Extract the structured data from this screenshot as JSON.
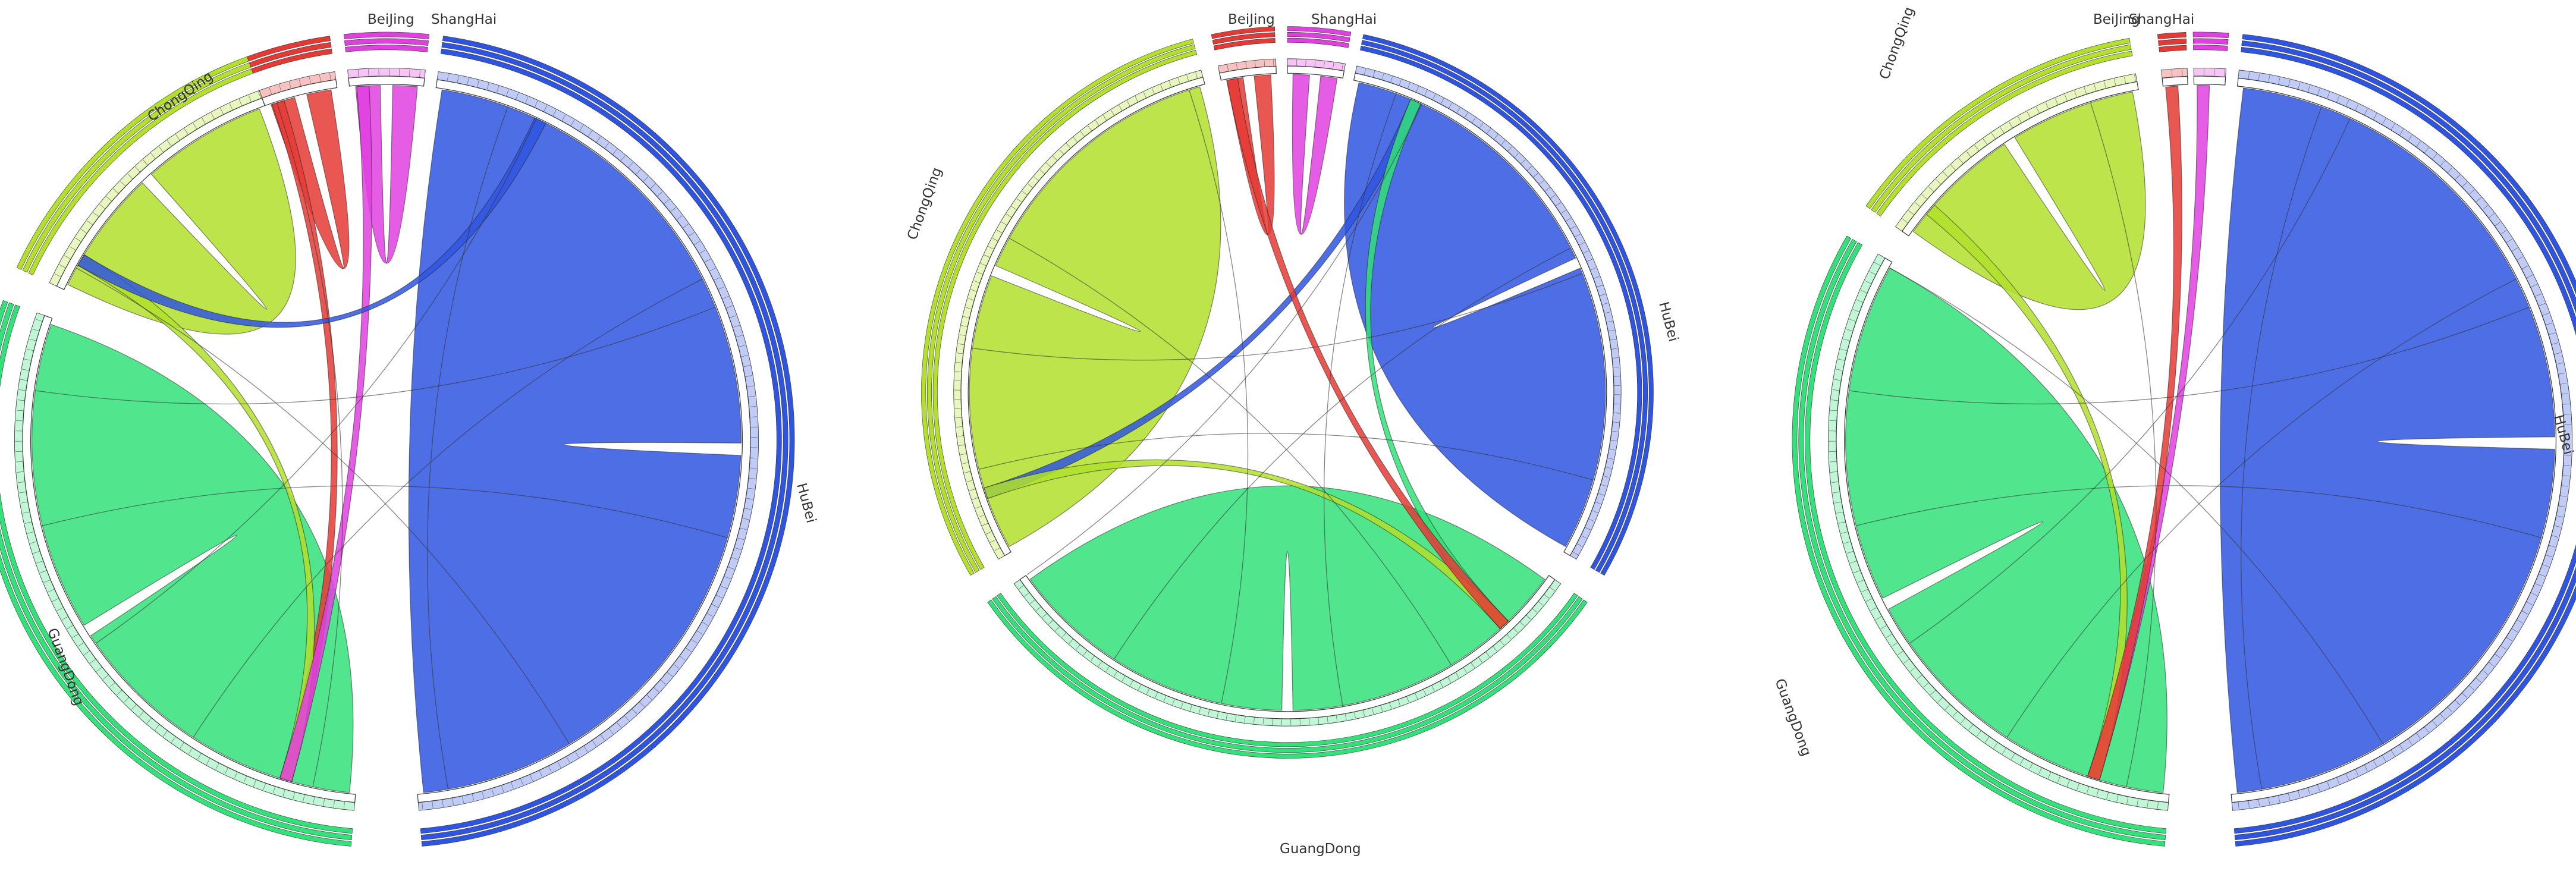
{
  "colors": {
    "BeiJing": "#e53935",
    "ShangHai": "#e040e0",
    "HuBei": "#2f55e0",
    "GuangDong": "#33e07a",
    "ChongQing": "#b2e02c"
  },
  "diagrams": [
    {
      "id": "chord-1",
      "labels": [
        "BeiJing",
        "ShangHai",
        "HuBei",
        "GuangDong",
        "ChongQing"
      ],
      "ribbons": [
        [
          "HuBei",
          "HuBei"
        ],
        [
          "GuangDong",
          "GuangDong"
        ],
        [
          "ChongQing",
          "ChongQing"
        ],
        [
          "BeiJing",
          "BeiJing"
        ],
        [
          "ShangHai",
          "ShangHai"
        ],
        [
          "BeiJing",
          "GuangDong"
        ],
        [
          "ChongQing",
          "GuangDong"
        ],
        [
          "ShangHai",
          "GuangDong"
        ],
        [
          "HuBei",
          "ChongQing"
        ]
      ]
    },
    {
      "id": "chord-2",
      "labels": [
        "BeiJing",
        "ShangHai",
        "HuBei",
        "GuangDong",
        "ChongQing"
      ],
      "ribbons": [
        [
          "HuBei",
          "HuBei"
        ],
        [
          "GuangDong",
          "GuangDong"
        ],
        [
          "ChongQing",
          "ChongQing"
        ],
        [
          "BeiJing",
          "BeiJing"
        ],
        [
          "ShangHai",
          "ShangHai"
        ],
        [
          "HuBei",
          "ChongQing"
        ],
        [
          "GuangDong",
          "HuBei"
        ],
        [
          "ChongQing",
          "GuangDong"
        ],
        [
          "BeiJing",
          "GuangDong"
        ]
      ]
    },
    {
      "id": "chord-3",
      "labels": [
        "BeiJing",
        "ShangHai",
        "HuBei",
        "GuangDong",
        "ChongQing"
      ],
      "ribbons": [
        [
          "HuBei",
          "HuBei"
        ],
        [
          "GuangDong",
          "GuangDong"
        ],
        [
          "ChongQing",
          "ChongQing"
        ],
        [
          "ShangHai",
          "GuangDong"
        ],
        [
          "ChongQing",
          "GuangDong"
        ],
        [
          "BeiJing",
          "GuangDong"
        ]
      ]
    }
  ]
}
